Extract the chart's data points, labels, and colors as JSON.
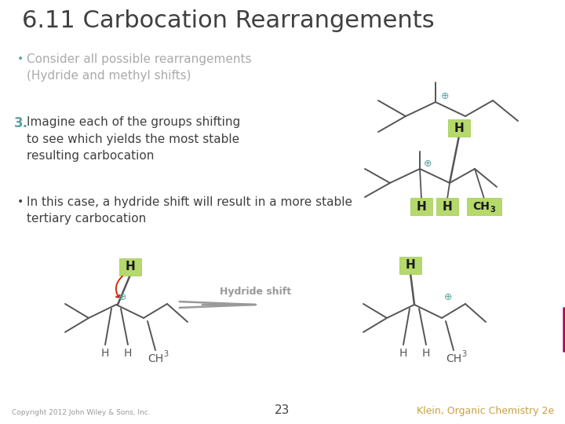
{
  "title": "6.11 Carbocation Rearrangements",
  "title_fontsize": 22,
  "title_color": "#404040",
  "bullet1": "Consider all possible rearrangements\n(Hydride and methyl shifts)",
  "bullet1_color": "#aaaaaa",
  "bullet1_dot_color": "#5ba3a0",
  "item3_num": "3.",
  "item3_color": "#5ba3a0",
  "item3_text": "Imagine each of the groups shifting\nto see which yields the most stable\nresulting carbocation",
  "item3_fontsize": 11,
  "bullet2": "In this case, a hydride shift will result in a more stable\ntertiary carbocation",
  "bullet2_color": "#404040",
  "text_fontsize": 11,
  "green_box_color": "#b5d96b",
  "green_box_edge": "#a0c855",
  "bond_color": "#555555",
  "plus_color": "#5ba3a0",
  "arrow_color": "#999999",
  "hydride_shift_color": "#999999",
  "copyright_text": "Copyright 2012 John Wiley & Sons, Inc.",
  "page_num": "23",
  "footer_ref": "Klein, Organic Chemistry 2e",
  "footer_ref_color": "#c8a040",
  "magenta_color": "#b5005a",
  "bg_color": "#ffffff"
}
